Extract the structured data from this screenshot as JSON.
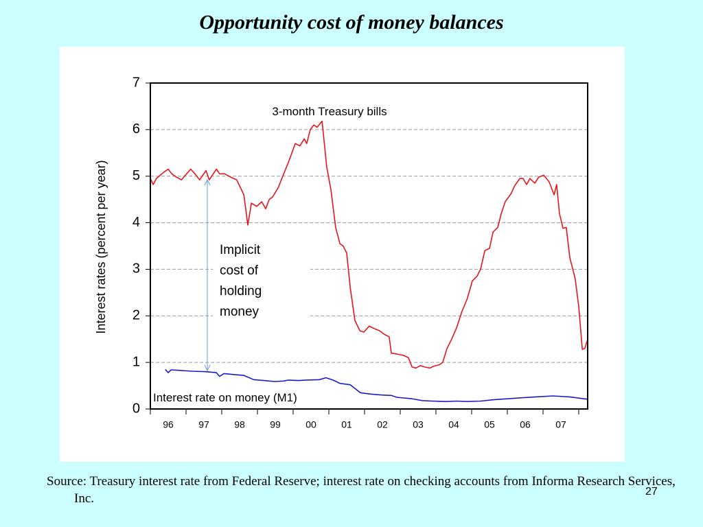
{
  "chart_data": {
    "type": "line",
    "title": "Opportunity cost of money balances",
    "y_label": "Interest rates (percent per year)",
    "annotation_lines": [
      "Implicit",
      "cost of",
      "holding",
      "money"
    ],
    "source": "Source: Treasury interest rate from Federal Reserve; interest rate on checking accounts from Informa Research Services, Inc.",
    "page_number": "27",
    "xlim": [
      1996,
      2008.25
    ],
    "xticks": [
      {
        "value": 1996.5,
        "label": "96"
      },
      {
        "value": 1997.5,
        "label": "97"
      },
      {
        "value": 1998.5,
        "label": "98"
      },
      {
        "value": 1999.5,
        "label": "99"
      },
      {
        "value": 2000.5,
        "label": "00"
      },
      {
        "value": 2001.5,
        "label": "01"
      },
      {
        "value": 2002.5,
        "label": "02"
      },
      {
        "value": 2003.5,
        "label": "03"
      },
      {
        "value": 2004.5,
        "label": "04"
      },
      {
        "value": 2005.5,
        "label": "05"
      },
      {
        "value": 2006.5,
        "label": "06"
      },
      {
        "value": 2007.5,
        "label": "07"
      }
    ],
    "ylim": [
      0,
      7
    ],
    "yticks": [
      0,
      1,
      2,
      3,
      4,
      5,
      6,
      7
    ],
    "grid": true,
    "series": [
      {
        "name": "3-month Treasury bills",
        "color": "#e8141c",
        "x": [
          1996.0,
          1996.08,
          1996.17,
          1996.37,
          1996.5,
          1996.6,
          1996.73,
          1996.87,
          1996.98,
          1997.13,
          1997.25,
          1997.38,
          1997.56,
          1997.65,
          1997.85,
          1997.94,
          1998.08,
          1998.25,
          1998.42,
          1998.62,
          1998.73,
          1998.83,
          1998.98,
          1999.12,
          1999.23,
          1999.33,
          1999.42,
          1999.58,
          1999.71,
          1999.87,
          2000.06,
          2000.19,
          2000.31,
          2000.38,
          2000.48,
          2000.58,
          2000.67,
          2000.81,
          2000.94,
          2001.06,
          2001.19,
          2001.31,
          2001.4,
          2001.5,
          2001.6,
          2001.73,
          2001.87,
          2001.98,
          2002.13,
          2002.29,
          2002.42,
          2002.56,
          2002.69,
          2002.75,
          2002.9,
          2003.1,
          2003.23,
          2003.33,
          2003.44,
          2003.56,
          2003.69,
          2003.83,
          2003.94,
          2004.1,
          2004.19,
          2004.31,
          2004.44,
          2004.58,
          2004.73,
          2004.87,
          2005.02,
          2005.15,
          2005.25,
          2005.37,
          2005.5,
          2005.6,
          2005.73,
          2005.83,
          2005.94,
          2006.1,
          2006.21,
          2006.35,
          2006.44,
          2006.54,
          2006.63,
          2006.77,
          2006.88,
          2007.02,
          2007.17,
          2007.31,
          2007.38,
          2007.46,
          2007.56,
          2007.65,
          2007.75,
          2007.9,
          2008.0,
          2008.1,
          2008.17,
          2008.25
        ],
        "values": [
          4.95,
          4.82,
          4.95,
          5.08,
          5.15,
          5.05,
          4.98,
          4.92,
          5.02,
          5.15,
          5.05,
          4.92,
          5.12,
          4.92,
          5.15,
          5.05,
          5.05,
          4.98,
          4.92,
          4.6,
          3.95,
          4.42,
          4.35,
          4.45,
          4.3,
          4.5,
          4.55,
          4.75,
          5.0,
          5.3,
          5.7,
          5.65,
          5.8,
          5.7,
          6.0,
          6.1,
          6.05,
          6.18,
          5.2,
          4.7,
          3.9,
          3.55,
          3.5,
          3.35,
          2.6,
          1.9,
          1.68,
          1.65,
          1.78,
          1.72,
          1.68,
          1.6,
          1.55,
          1.2,
          1.18,
          1.15,
          1.1,
          0.9,
          0.88,
          0.93,
          0.9,
          0.88,
          0.92,
          0.95,
          1.0,
          1.3,
          1.5,
          1.75,
          2.1,
          2.35,
          2.75,
          2.85,
          3.0,
          3.4,
          3.45,
          3.8,
          3.9,
          4.2,
          4.45,
          4.62,
          4.8,
          4.95,
          4.95,
          4.82,
          4.95,
          4.85,
          4.98,
          5.02,
          4.88,
          4.6,
          4.82,
          4.2,
          3.88,
          3.9,
          3.25,
          2.8,
          2.2,
          1.28,
          1.3,
          1.5
        ]
      },
      {
        "name": "Interest rate on money (M1)",
        "color": "#1a1acc",
        "x": [
          1996.42,
          1996.5,
          1996.58,
          1996.79,
          1997.17,
          1997.56,
          1997.85,
          1997.94,
          1998.06,
          1998.33,
          1998.62,
          1998.9,
          1999.19,
          1999.48,
          1999.73,
          1999.87,
          2000.15,
          2000.35,
          2000.73,
          2000.92,
          2001.12,
          2001.31,
          2001.6,
          2001.88,
          2002.17,
          2002.46,
          2002.75,
          2002.9,
          2003.33,
          2003.62,
          2003.9,
          2004.29,
          2004.58,
          2004.87,
          2005.25,
          2005.63,
          2006.02,
          2006.4,
          2006.79,
          2007.27,
          2007.75,
          2008.04,
          2008.25
        ],
        "values": [
          0.85,
          0.78,
          0.84,
          0.83,
          0.81,
          0.8,
          0.78,
          0.7,
          0.76,
          0.74,
          0.72,
          0.63,
          0.61,
          0.59,
          0.6,
          0.62,
          0.61,
          0.62,
          0.63,
          0.67,
          0.62,
          0.55,
          0.52,
          0.35,
          0.32,
          0.3,
          0.29,
          0.25,
          0.22,
          0.18,
          0.17,
          0.16,
          0.17,
          0.16,
          0.17,
          0.2,
          0.22,
          0.24,
          0.26,
          0.28,
          0.26,
          0.23,
          0.21
        ]
      }
    ]
  }
}
